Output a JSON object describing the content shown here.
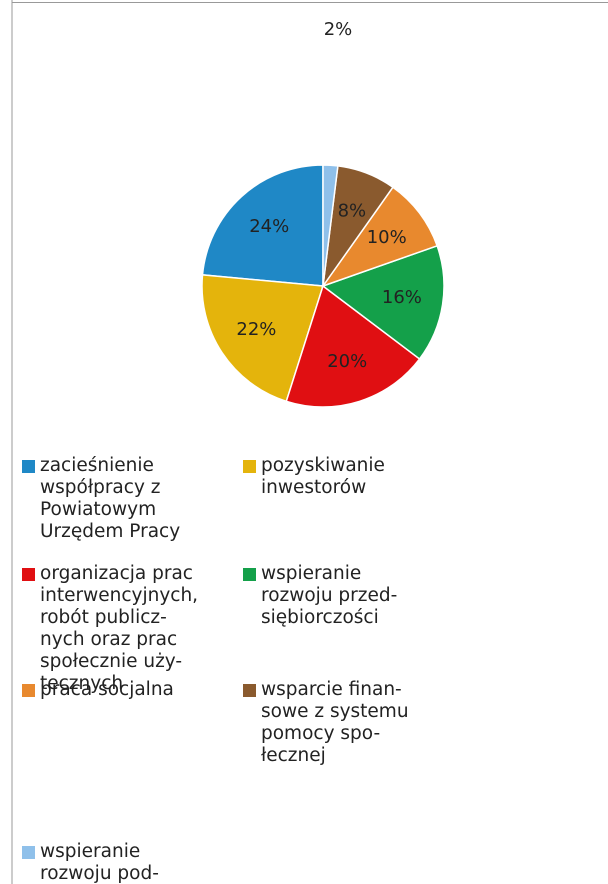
{
  "chart_data": {
    "type": "pie",
    "categories": [
      "zacieśnienie\nwspółpracy z\nPowiatowym\nUrzędem Pracy",
      "pozyskiwanie\ninwestorów",
      "organizacja prac\ninterwencyjnych,\nrobót publicz-\nnych oraz prac\nspołecznie uży-\ntecznych",
      "wspieranie\nrozwoju przed-\nsiębiorczości",
      "praca socjalna",
      "wsparcie finan-\nsowe z systemu\npomocy spo-\nłecznej",
      "wspieranie\nrozwoju pod-"
    ],
    "values": [
      24,
      22,
      20,
      16,
      10,
      8,
      2
    ],
    "value_labels": [
      "24%",
      "22%",
      "20%",
      "16%",
      "10%",
      "8%",
      "2%"
    ],
    "colors": [
      "#1f88c6",
      "#e4b40c",
      "#e00f12",
      "#14a04a",
      "#e8892e",
      "#8a5a2e",
      "#8fc0ea"
    ]
  }
}
